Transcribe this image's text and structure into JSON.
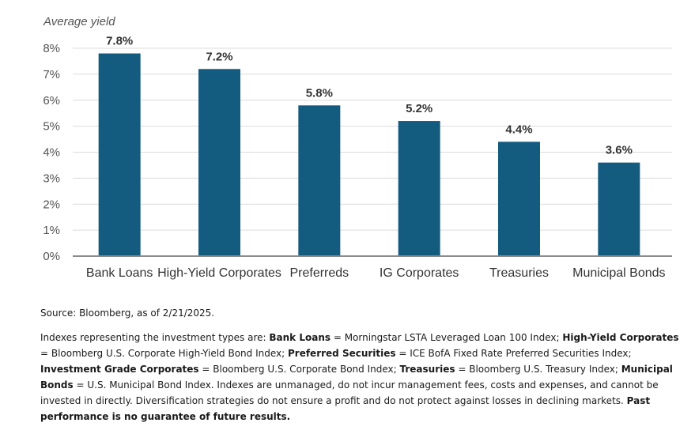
{
  "chart_data": {
    "type": "bar",
    "ylabel": "Average yield",
    "categories": [
      "Bank Loans",
      "High-Yield Corporates",
      "Preferreds",
      "IG Corporates",
      "Treasuries",
      "Municipal Bonds"
    ],
    "values": [
      7.8,
      7.2,
      5.8,
      5.2,
      4.4,
      3.6
    ],
    "value_labels": [
      "7.8%",
      "7.2%",
      "5.8%",
      "5.2%",
      "4.4%",
      "3.6%"
    ],
    "ylim": [
      0,
      8
    ],
    "yticks": [
      "0%",
      "1%",
      "2%",
      "3%",
      "4%",
      "5%",
      "6%",
      "7%",
      "8%"
    ],
    "grid": true,
    "bar_color": "#145b80",
    "grid_color": "#dcdcdc",
    "axis_color": "#8a8a8a",
    "tick_text_color": "#555555",
    "label_text_color": "#333333"
  },
  "notes": {
    "source": "Source: Bloomberg, as of 2/21/2025.",
    "disclaimer": [
      {
        "text": "Indexes representing the investment types are: ",
        "bold": false
      },
      {
        "text": "Bank Loans",
        "bold": true
      },
      {
        "text": " = Morningstar LSTA Leveraged Loan 100 Index; ",
        "bold": false
      },
      {
        "text": "High-Yield Corporates",
        "bold": true
      },
      {
        "text": " = Bloomberg U.S. Corporate High-Yield Bond Index; ",
        "bold": false
      },
      {
        "text": "Preferred Securities",
        "bold": true
      },
      {
        "text": " = ICE BofA Fixed Rate Preferred Securities Index; ",
        "bold": false
      },
      {
        "text": "Investment Grade Corporates",
        "bold": true
      },
      {
        "text": " = Bloomberg U.S. Corporate Bond Index; ",
        "bold": false
      },
      {
        "text": "Treasuries",
        "bold": true
      },
      {
        "text": " = Bloomberg U.S. Treasury Index; ",
        "bold": false
      },
      {
        "text": "Municipal Bonds",
        "bold": true
      },
      {
        "text": " = U.S. Municipal Bond Index. Indexes are unmanaged, do not incur management fees, costs and expenses, and cannot be invested in directly. Diversification strategies do not ensure a profit and do not protect against losses in declining markets. ",
        "bold": false
      },
      {
        "text": "Past performance is no guarantee of future results.",
        "bold": true
      }
    ]
  }
}
